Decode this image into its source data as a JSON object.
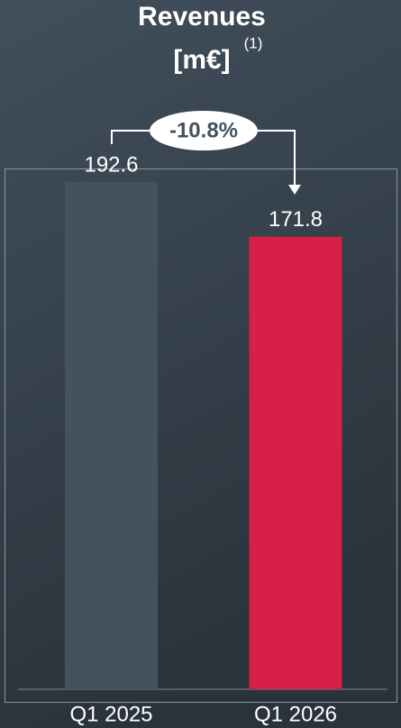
{
  "chart_data": {
    "type": "bar",
    "title": "Revenues",
    "unit": "[m€]",
    "footnote": "(1)",
    "categories": [
      "Q1 2025",
      "Q1 2026"
    ],
    "values": [
      192.6,
      171.8
    ],
    "colors": [
      "#44525f",
      "#d81f48"
    ],
    "ylim": [
      0,
      197.7
    ],
    "annotation": "-10.8%"
  }
}
